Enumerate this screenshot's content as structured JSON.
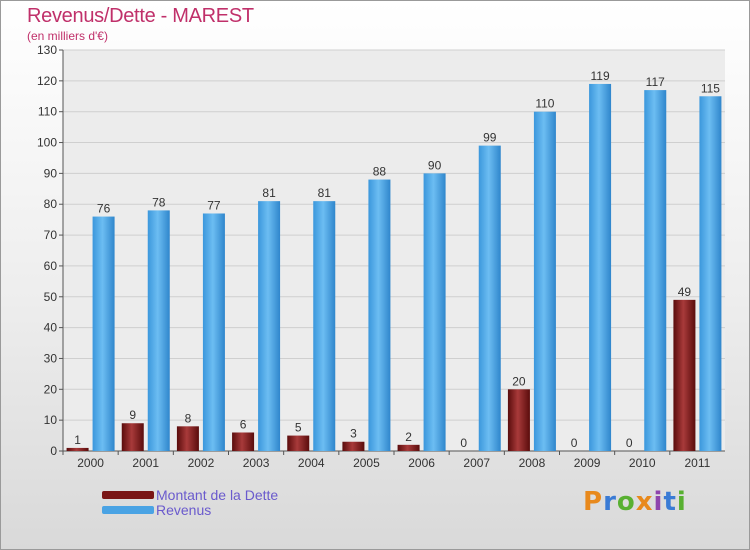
{
  "title": "Revenus/Dette - MAREST",
  "subtitle": "(en milliers d'€)",
  "logo_text": "Proxiti",
  "logo_colors": [
    "#e8891c",
    "#3a7bd5",
    "#58b031",
    "#e8891c",
    "#8e44ad",
    "#3a7bd5",
    "#58b031"
  ],
  "legend": {
    "position": "bottom-left",
    "items": [
      {
        "label": "Montant de la Dette",
        "color": "#7a1515"
      },
      {
        "label": "Revenus",
        "color": "#4aa3e4"
      }
    ]
  },
  "chart_data": {
    "type": "bar",
    "title": "Revenus/Dette - MAREST",
    "subtitle": "(en milliers d'€)",
    "xlabel": "",
    "ylabel": "",
    "categories": [
      "2000",
      "2001",
      "2002",
      "2003",
      "2004",
      "2005",
      "2006",
      "2007",
      "2008",
      "2009",
      "2010",
      "2011"
    ],
    "series": [
      {
        "name": "Montant de la Dette",
        "color": "#7a1515",
        "values": [
          1,
          9,
          8,
          6,
          5,
          3,
          2,
          0,
          20,
          0,
          0,
          49
        ]
      },
      {
        "name": "Revenus",
        "color": "#4aa3e4",
        "values": [
          76,
          78,
          77,
          81,
          81,
          88,
          90,
          99,
          110,
          119,
          117,
          115
        ]
      }
    ],
    "ylim": [
      0,
      130
    ],
    "yticks": [
      0,
      10,
      20,
      30,
      40,
      50,
      60,
      70,
      80,
      90,
      100,
      110,
      120,
      130
    ],
    "grid": true,
    "data_labels": true
  }
}
